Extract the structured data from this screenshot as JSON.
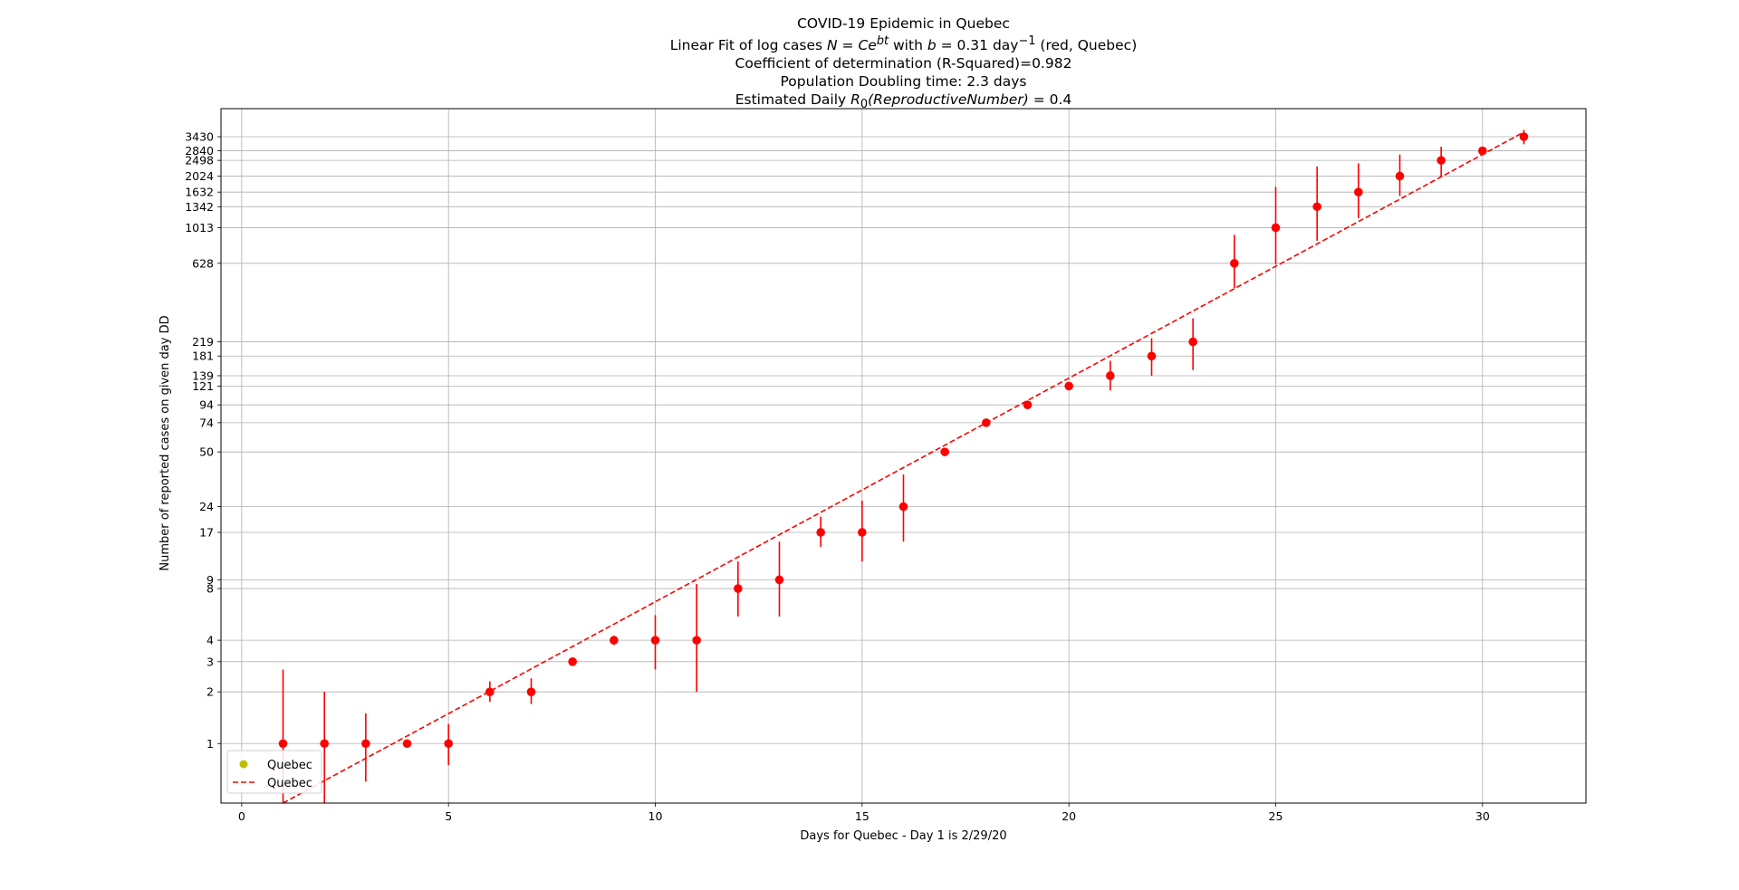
{
  "chart_data": {
    "type": "scatter",
    "title_lines": [
      "COVID-19 Epidemic in Quebec",
      "Linear Fit of log cases N = Ce^{bt} with b = 0.31 day^{-1} (red, Quebec)",
      "Coefficient of determination (R-Squared)=0.982",
      "Population Doubling time: 2.3 days",
      "Estimated Daily R_0(ReproductiveNumber) = 0.4"
    ],
    "title_parts": {
      "line2_prefix": "Linear Fit of log cases ",
      "line2_eq_lhs": "N",
      "line2_eq_mid": " = ",
      "line2_eq_base": "Ce",
      "line2_eq_exp": "bt",
      "line2_with": " with ",
      "line2_b": "b",
      "line2_b_val": " = 0.31 day",
      "line2_b_exp": "−1",
      "line2_suffix": " (red, Quebec)",
      "line5_prefix": "Estimated Daily ",
      "line5_R": "R",
      "line5_sub": "0",
      "line5_mid": "(ReproductiveNumber)",
      "line5_suffix": " = 0.4"
    },
    "line1": "COVID-19 Epidemic in Quebec",
    "line3": "Coefficient of determination (R-Squared)=0.982",
    "line4": "Population Doubling time: 2.3 days",
    "xlabel": "Days for Quebec - Day 1 is 2/29/20",
    "ylabel": "Number of reported cases on given day DD",
    "y_scale": "log",
    "xlim": [
      -0.5,
      32.5
    ],
    "ylim": [
      0.45,
      5000
    ],
    "x_ticks": [
      0,
      5,
      10,
      15,
      20,
      25,
      30
    ],
    "x_tick_labels": [
      "0",
      "5",
      "10",
      "15",
      "20",
      "25",
      "30"
    ],
    "y_ticks": [
      1,
      2,
      3,
      4,
      8,
      9,
      17,
      24,
      50,
      74,
      94,
      121,
      139,
      181,
      219,
      628,
      1013,
      1342,
      1632,
      2024,
      2498,
      2840,
      3430
    ],
    "y_tick_labels": [
      "1",
      "2",
      "3",
      "4",
      "8",
      "9",
      "17",
      "24",
      "50",
      "74",
      "94",
      "121",
      "139",
      "181",
      "219",
      "628",
      "1013",
      "1342",
      "1632",
      "2024",
      "2498",
      "2840",
      "3430"
    ],
    "grid": true,
    "legend_position": "lower-left",
    "legend": [
      {
        "label": "Quebec",
        "marker": "dot",
        "color": "#bfbf00"
      },
      {
        "label": "Quebec",
        "marker": "dashed-line",
        "color": "#ff0000"
      }
    ],
    "series": [
      {
        "name": "Quebec",
        "style": "points-with-errorbars",
        "color": "#ff0000",
        "x": [
          1,
          2,
          3,
          4,
          5,
          6,
          7,
          8,
          9,
          10,
          11,
          12,
          13,
          14,
          15,
          16,
          17,
          18,
          19,
          20,
          21,
          22,
          23,
          24,
          25,
          26,
          27,
          28,
          29,
          30,
          31
        ],
        "y": [
          1,
          1,
          1,
          1,
          1,
          2,
          2,
          3,
          4,
          4,
          4,
          8,
          9,
          17,
          17,
          24,
          50,
          74,
          94,
          121,
          139,
          181,
          219,
          628,
          1013,
          1342,
          1632,
          2024,
          2498,
          2840,
          3430
        ],
        "err_low": [
          0.4,
          0.45,
          0.6,
          0.95,
          0.75,
          1.75,
          1.7,
          2.9,
          3.75,
          2.7,
          2.0,
          5.5,
          5.5,
          14.0,
          11.5,
          15.0,
          48.0,
          71.0,
          91.5,
          117,
          114,
          139,
          150,
          450,
          620,
          850,
          1150,
          1550,
          2000,
          2700,
          3100
        ],
        "err_high": [
          2.7,
          2.0,
          1.5,
          1.05,
          1.3,
          2.3,
          2.4,
          3.1,
          4.25,
          5.6,
          8.5,
          11.5,
          15.0,
          21.0,
          26.0,
          37.0,
          52.0,
          77.0,
          96.0,
          125,
          170,
          230,
          300,
          920,
          1750,
          2300,
          2400,
          2700,
          3000,
          2980,
          3760
        ]
      },
      {
        "name": "Quebec",
        "style": "dashed-fit",
        "color": "#ff0000",
        "x": [
          1,
          31
        ],
        "y": [
          0.45,
          3650
        ]
      }
    ]
  }
}
